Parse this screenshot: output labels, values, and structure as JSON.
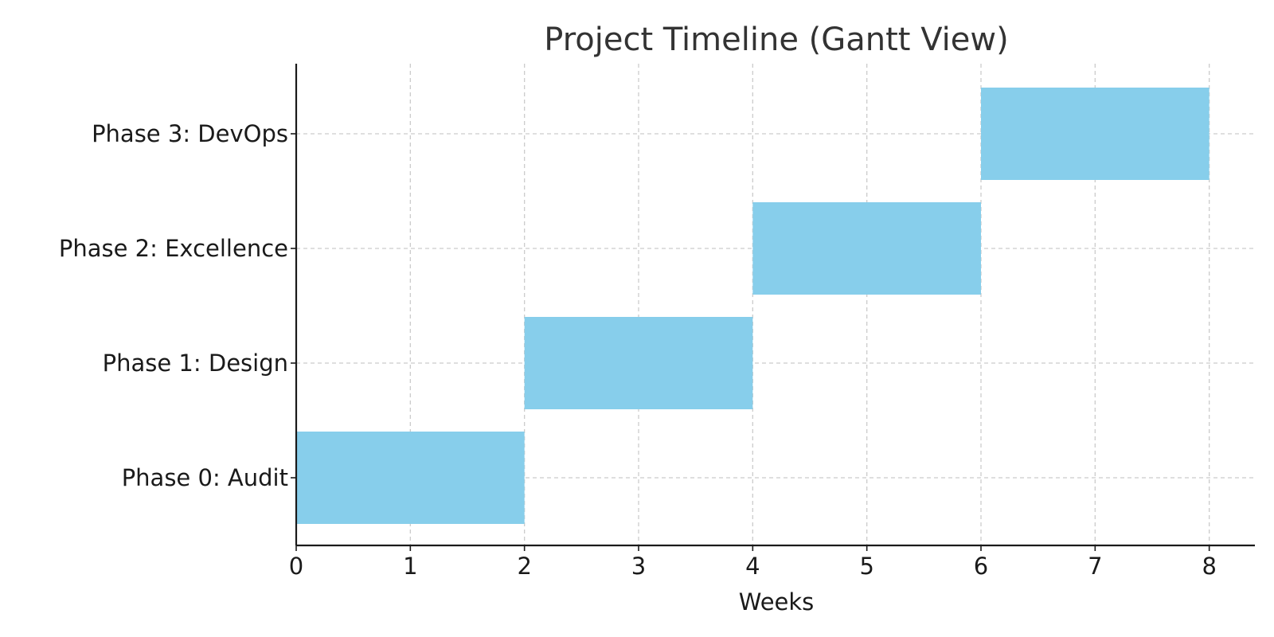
{
  "chart_data": {
    "type": "bar",
    "orientation": "horizontal",
    "subtype": "gantt",
    "title": "Project Timeline (Gantt View)",
    "xlabel": "Weeks",
    "ylabel": "",
    "xlim": [
      0,
      8.4
    ],
    "x_ticks": [
      0,
      1,
      2,
      3,
      4,
      5,
      6,
      7,
      8
    ],
    "categories": [
      "Phase 0: Audit",
      "Phase 1: Design",
      "Phase 2: Excellence",
      "Phase 3: DevOps"
    ],
    "tasks": [
      {
        "label": "Phase 0: Audit",
        "start": 0,
        "end": 2
      },
      {
        "label": "Phase 1: Design",
        "start": 2,
        "end": 4
      },
      {
        "label": "Phase 2: Excellence",
        "start": 4,
        "end": 6
      },
      {
        "label": "Phase 3: DevOps",
        "start": 6,
        "end": 8
      }
    ],
    "bar_color": "#87ceeb",
    "grid": true,
    "legend": "none"
  }
}
